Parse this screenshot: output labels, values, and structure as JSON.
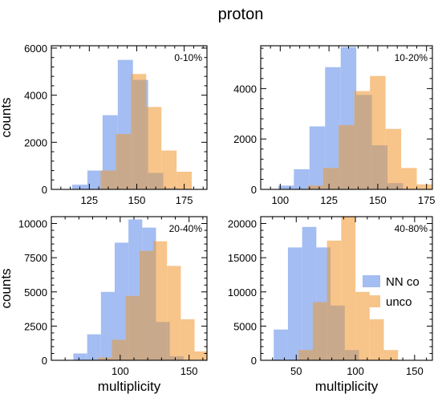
{
  "figure_title": "proton",
  "colors": {
    "NN co": "#a4bdf2",
    "unco": "#f7c48a",
    "overlap": "#c9a98b"
  },
  "legend": {
    "placement": "center-right",
    "panel": 3,
    "entries": [
      "NN co",
      "unco"
    ]
  },
  "chart_data": [
    {
      "type": "histogram",
      "annotation": "0-10%",
      "xlabel": "",
      "ylabel": "counts",
      "xlim": [
        105,
        187
      ],
      "ylim": [
        0,
        6100
      ],
      "xticks": [
        125,
        150,
        175
      ],
      "yticks": [
        0,
        2000,
        4000,
        6000
      ],
      "series": [
        {
          "name": "NN co",
          "bins": [
            [
              116,
              124,
              200
            ],
            [
              124,
              132,
              800
            ],
            [
              132,
              140,
              3150
            ],
            [
              140,
              148,
              5500
            ],
            [
              148,
              156,
              4650
            ],
            [
              156,
              164,
              700
            ],
            [
              164,
              172,
              50
            ]
          ]
        },
        {
          "name": "unco",
          "bins": [
            [
              131,
              139,
              800
            ],
            [
              139,
              147,
              2350
            ],
            [
              147,
              155,
              4900
            ],
            [
              155,
              163,
              3500
            ],
            [
              163,
              171,
              1650
            ],
            [
              171,
              179,
              750
            ]
          ]
        }
      ]
    },
    {
      "type": "histogram",
      "annotation": "10-20%",
      "xlabel": "",
      "ylabel": "",
      "xlim": [
        90,
        178
      ],
      "ylim": [
        0,
        5700
      ],
      "xticks": [
        100,
        125,
        150,
        175
      ],
      "yticks": [
        0,
        2000,
        4000
      ],
      "series": [
        {
          "name": "NN co",
          "bins": [
            [
              99,
              107,
              150
            ],
            [
              107,
              115,
              800
            ],
            [
              115,
              123,
              2500
            ],
            [
              123,
              131,
              4850
            ],
            [
              131,
              139,
              5650
            ],
            [
              139,
              147,
              3750
            ],
            [
              147,
              155,
              1750
            ],
            [
              155,
              163,
              250
            ]
          ]
        },
        {
          "name": "unco",
          "bins": [
            [
              114,
              122,
              150
            ],
            [
              122,
              130,
              850
            ],
            [
              130,
              138,
              2550
            ],
            [
              138,
              146,
              3900
            ],
            [
              146,
              154,
              4500
            ],
            [
              154,
              162,
              2400
            ],
            [
              162,
              170,
              850
            ],
            [
              170,
              178,
              200
            ]
          ]
        }
      ]
    },
    {
      "type": "histogram",
      "annotation": "20-40%",
      "xlabel": "multiplicity",
      "ylabel": "counts",
      "xlim": [
        50,
        163
      ],
      "ylim": [
        0,
        10500
      ],
      "xticks": [
        100,
        150
      ],
      "yticks": [
        0,
        2500,
        5000,
        7500,
        10000
      ],
      "series": [
        {
          "name": "NN co",
          "bins": [
            [
              66,
              76,
              500
            ],
            [
              76,
              86,
              1900
            ],
            [
              86,
              96,
              5000
            ],
            [
              96,
              106,
              8600
            ],
            [
              106,
              116,
              10300
            ],
            [
              116,
              126,
              9700
            ],
            [
              126,
              136,
              2800
            ],
            [
              136,
              146,
              300
            ]
          ]
        },
        {
          "name": "unco",
          "bins": [
            [
              84,
              94,
              200
            ],
            [
              94,
              104,
              1500
            ],
            [
              104,
              114,
              4700
            ],
            [
              114,
              124,
              8000
            ],
            [
              124,
              134,
              8700
            ],
            [
              134,
              144,
              6900
            ],
            [
              144,
              154,
              3000
            ],
            [
              154,
              164,
              650
            ]
          ]
        }
      ]
    },
    {
      "type": "histogram",
      "annotation": "40-80%",
      "xlabel": "multiplicity",
      "ylabel": "",
      "xlim": [
        20,
        165
      ],
      "ylim": [
        0,
        21000
      ],
      "xticks": [
        50,
        100,
        150
      ],
      "yticks": [
        0,
        5000,
        10000,
        15000,
        20000
      ],
      "series": [
        {
          "name": "NN co",
          "bins": [
            [
              31,
              43,
              4500
            ],
            [
              43,
              55,
              16500
            ],
            [
              55,
              67,
              19500
            ],
            [
              67,
              79,
              16500
            ],
            [
              79,
              91,
              8000
            ],
            [
              91,
              103,
              1500
            ]
          ]
        },
        {
          "name": "unco",
          "bins": [
            [
              52,
              64,
              1500
            ],
            [
              64,
              76,
              8500
            ],
            [
              76,
              88,
              17500
            ],
            [
              88,
              100,
              21000
            ],
            [
              100,
              112,
              10000
            ],
            [
              112,
              124,
              6000
            ],
            [
              124,
              136,
              1500
            ]
          ]
        }
      ]
    }
  ]
}
